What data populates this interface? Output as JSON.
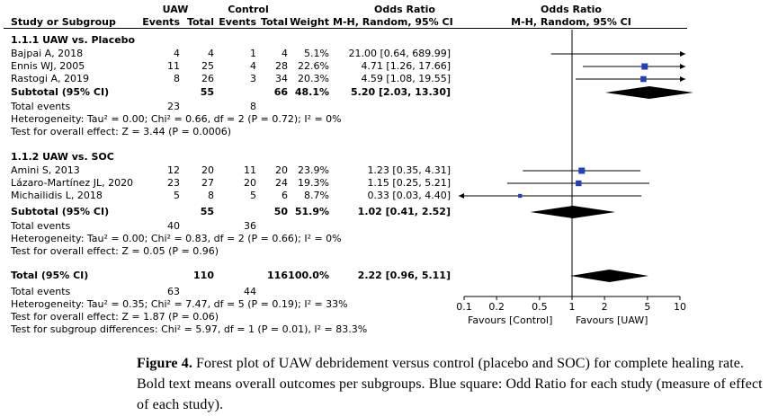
{
  "header": {
    "group1": "UAW",
    "group2": "Control",
    "or_left": "Odds Ratio",
    "or_right": "Odds Ratio",
    "col_study": "Study or Subgroup",
    "col_events1": "Events",
    "col_total1": "Total",
    "col_events2": "Events",
    "col_total2": "Total",
    "col_weight": "Weight",
    "col_method_left": "M-H, Random, 95% CI",
    "col_method_right": "M-H, Random, 95% CI"
  },
  "subgroup1": {
    "title": "1.1.1 UAW vs. Placebo",
    "subtotal_label": "Subtotal (95% CI)",
    "subtotal_total1": "55",
    "subtotal_total2": "66",
    "subtotal_weight": "48.1%",
    "subtotal_ci": "5.20 [2.03, 13.30]",
    "total_events_label": "Total events",
    "total_events1": "23",
    "total_events2": "8",
    "heterogeneity": "Heterogeneity: Tau² = 0.00; Chi² = 0.66, df = 2 (P = 0.72); I² = 0%",
    "overall_effect": "Test for overall effect: Z = 3.44 (P = 0.0006)"
  },
  "subgroup2": {
    "title": "1.1.2 UAW vs. SOC",
    "subtotal_label": "Subtotal (95% CI)",
    "subtotal_total1": "55",
    "subtotal_total2": "50",
    "subtotal_weight": "51.9%",
    "subtotal_ci": "1.02 [0.41, 2.52]",
    "total_events_label": "Total events",
    "total_events1": "40",
    "total_events2": "36",
    "heterogeneity": "Heterogeneity: Tau² = 0.00; Chi² = 0.83, df = 2 (P = 0.66); I² = 0%",
    "overall_effect": "Test for overall effect: Z = 0.05 (P = 0.96)"
  },
  "overall": {
    "label": "Total (95% CI)",
    "total1": "110",
    "total2": "116",
    "weight": "100.0%",
    "ci": "2.22 [0.96, 5.11]",
    "total_events_label": "Total events",
    "total_events1": "63",
    "total_events2": "44",
    "heterogeneity": "Heterogeneity: Tau² = 0.35; Chi² = 7.47, df = 5 (P = 0.19); I² = 33%",
    "overall_effect": "Test for overall effect: Z = 1.87 (P = 0.06)",
    "subgroup_diff": "Test for subgroup differences: Chi² = 5.97, df = 1 (P = 0.01), I² = 83.3%"
  },
  "axis": {
    "favours_left": "Favours [Control]",
    "favours_right": "Favours [UAW]"
  },
  "caption": {
    "label": "Figure 4.",
    "text": " Forest plot of UAW debridement versus control (placebo and SOC) for complete healing rate.  Bold text means overall outcomes per subgroups.  Blue square:  Odd Ratio for each study (measure of effect of each study)."
  },
  "colors": {
    "study_marker": "#1f3fbf",
    "diamond": "#000000",
    "line": "#000000"
  },
  "chart_data": {
    "type": "forest",
    "scale": "log",
    "xlim": [
      0.1,
      10
    ],
    "ticks": [
      0.1,
      0.2,
      0.5,
      1,
      2,
      5,
      10
    ],
    "tick_labels": [
      "0.1",
      "0.2",
      "0.5",
      "1",
      "2",
      "5",
      "10"
    ],
    "studies": [
      {
        "study": "Bajpai A, 2018",
        "events1": 4,
        "total1": 4,
        "events2": 1,
        "total2": 4,
        "weight": "5.1%",
        "or": 21.0,
        "lo": 0.64,
        "hi": 689.99,
        "ci_text": "21.00 [0.64, 689.99]",
        "group": 1
      },
      {
        "study": "Ennis WJ, 2005",
        "events1": 11,
        "total1": 25,
        "events2": 4,
        "total2": 28,
        "weight": "22.6%",
        "or": 4.71,
        "lo": 1.26,
        "hi": 17.66,
        "ci_text": "4.71 [1.26, 17.66]",
        "group": 1
      },
      {
        "study": "Rastogi A, 2019",
        "events1": 8,
        "total1": 26,
        "events2": 3,
        "total2": 34,
        "weight": "20.3%",
        "or": 4.59,
        "lo": 1.08,
        "hi": 19.55,
        "ci_text": "4.59 [1.08, 19.55]",
        "group": 1
      },
      {
        "study": "Amini S, 2013",
        "events1": 12,
        "total1": 20,
        "events2": 11,
        "total2": 20,
        "weight": "23.9%",
        "or": 1.23,
        "lo": 0.35,
        "hi": 4.31,
        "ci_text": "1.23 [0.35, 4.31]",
        "group": 2
      },
      {
        "study": "Lázaro-Martínez JL, 2020",
        "events1": 23,
        "total1": 27,
        "events2": 20,
        "total2": 24,
        "weight": "19.3%",
        "or": 1.15,
        "lo": 0.25,
        "hi": 5.21,
        "ci_text": "1.15 [0.25, 5.21]",
        "group": 2
      },
      {
        "study": "Michailidis L, 2018",
        "events1": 5,
        "total1": 8,
        "events2": 5,
        "total2": 6,
        "weight": "8.7%",
        "or": 0.33,
        "lo": 0.03,
        "hi": 4.4,
        "ci_text": "0.33 [0.03, 4.40]",
        "group": 2
      }
    ],
    "summaries": [
      {
        "name": "Subtotal 1.1.1",
        "or": 5.2,
        "lo": 2.03,
        "hi": 13.3
      },
      {
        "name": "Subtotal 1.1.2",
        "or": 1.02,
        "lo": 0.41,
        "hi": 2.52
      },
      {
        "name": "Total",
        "or": 2.22,
        "lo": 0.96,
        "hi": 5.11
      }
    ]
  }
}
